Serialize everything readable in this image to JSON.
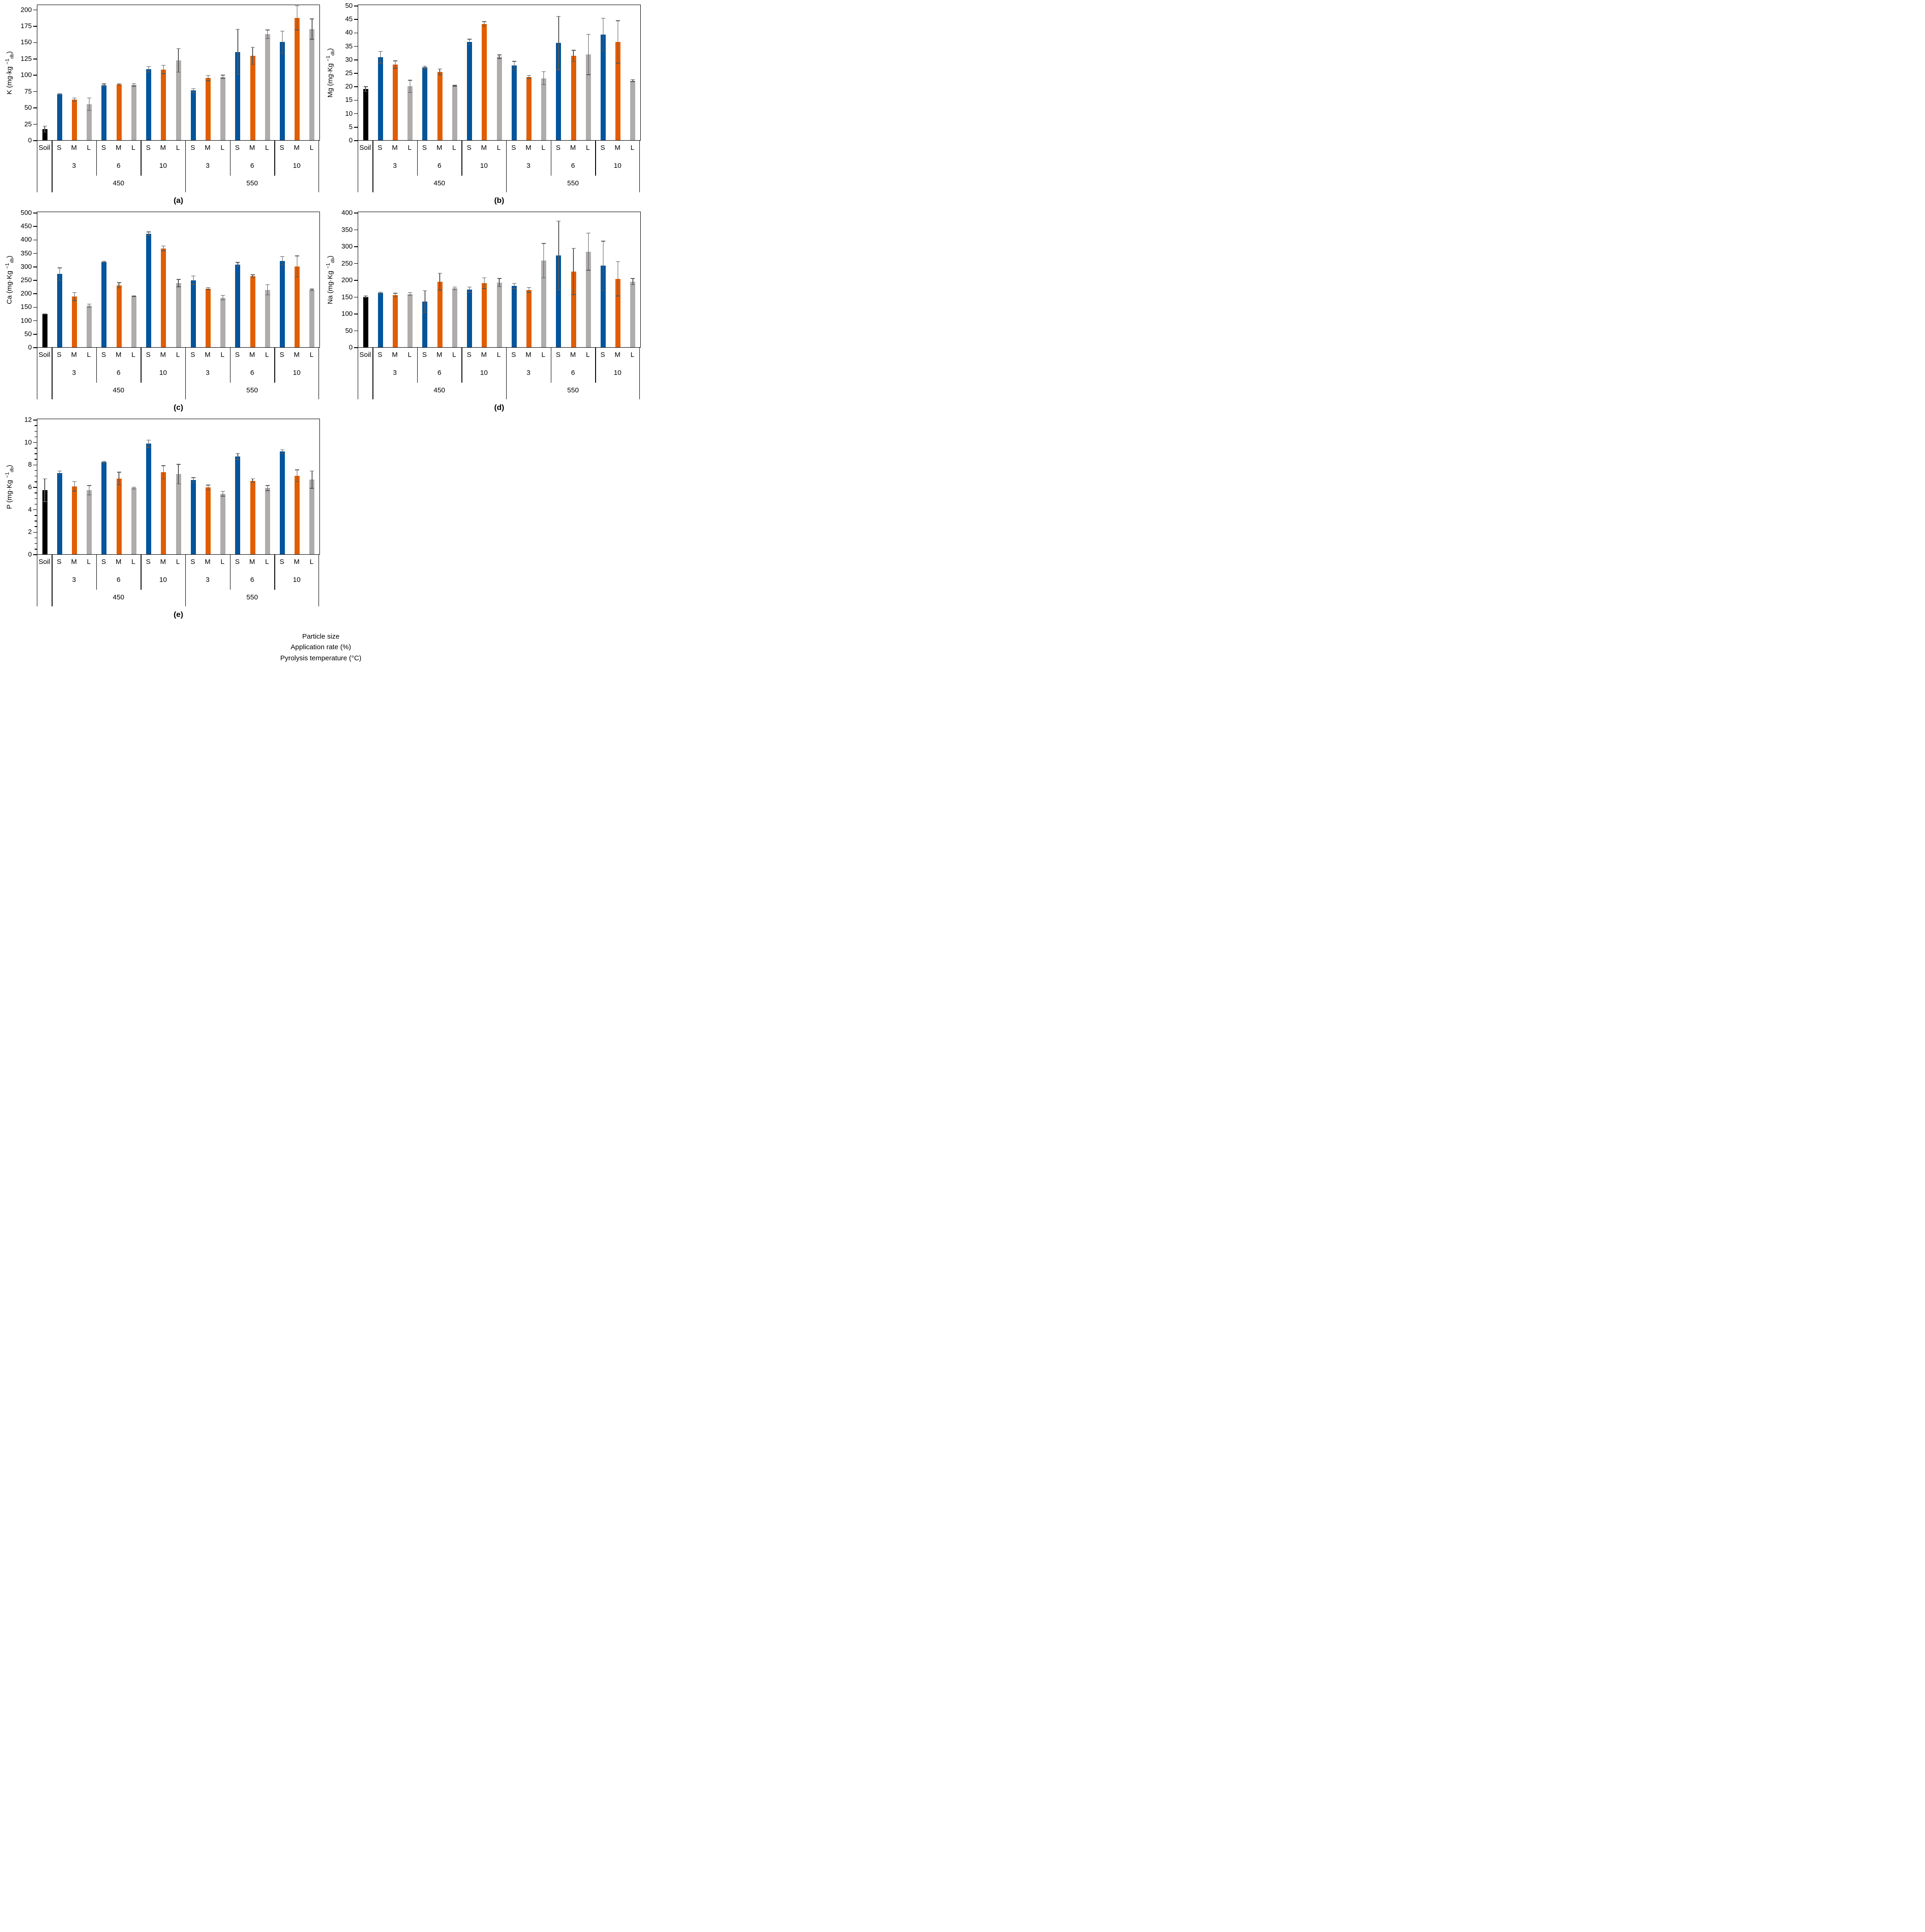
{
  "page": {
    "footer_lines": [
      "Particle size",
      "Application rate (%)",
      "Pyrolysis temperature (°C)"
    ]
  },
  "colors": {
    "soil": "#000000",
    "S": "#02549B",
    "M": "#E05E00",
    "L": "#AFACAC",
    "error_bar": "#595959"
  },
  "axis_labels": {
    "soil": "Soil",
    "particle_sizes": [
      "S",
      "M",
      "L"
    ],
    "application_rates": [
      "3",
      "6",
      "10"
    ],
    "temperatures": [
      "450",
      "550"
    ]
  },
  "chart_data": [
    {
      "type": "bar",
      "panel": "a",
      "caption": "(a)",
      "ylabel": {
        "pre": "K (mg·kg ",
        "sup": "−1",
        "sub": "db",
        "post": ")"
      },
      "ylim": [
        0,
        200
      ],
      "ytop": 206,
      "ytick_step": 25,
      "yminor_step": null,
      "grid": false,
      "legend": "none",
      "soil": {
        "value": 17,
        "err": 5
      },
      "groups": [
        {
          "temp": "450",
          "rate": "3",
          "values": [
            70.5,
            62,
            55
          ],
          "errors": [
            1.5,
            3,
            10
          ]
        },
        {
          "temp": "450",
          "rate": "6",
          "values": [
            84,
            85.5,
            84.5
          ],
          "errors": [
            2.5,
            1.5,
            2.5
          ]
        },
        {
          "temp": "450",
          "rate": "10",
          "values": [
            108.5,
            108,
            122
          ],
          "errors": [
            4.5,
            7,
            18.5
          ]
        },
        {
          "temp": "550",
          "rate": "3",
          "values": [
            76,
            95,
            97
          ],
          "errors": [
            3,
            4.5,
            3
          ]
        },
        {
          "temp": "550",
          "rate": "6",
          "values": [
            135,
            129,
            162
          ],
          "errors": [
            35,
            13.5,
            7
          ]
        },
        {
          "temp": "550",
          "rate": "10",
          "values": [
            150,
            187,
            170
          ],
          "errors": [
            17.5,
            19,
            16
          ]
        }
      ]
    },
    {
      "type": "bar",
      "panel": "b",
      "caption": "(b)",
      "ylabel": {
        "pre": "Mg (mg·Kg ",
        "sup": "−1",
        "sub": "db",
        "post": ")"
      },
      "ylim": [
        0,
        50
      ],
      "ytop": 50,
      "ytick_step": 5,
      "yminor_step": null,
      "grid": false,
      "legend": "none",
      "soil": {
        "value": 19,
        "err": 1
      },
      "groups": [
        {
          "temp": "450",
          "rate": "3",
          "values": [
            30.8,
            28.1,
            20
          ],
          "errors": [
            2.3,
            1.5,
            2.4
          ]
        },
        {
          "temp": "450",
          "rate": "6",
          "values": [
            27,
            25.4,
            20.2
          ],
          "errors": [
            0.6,
            1.2,
            0.3
          ]
        },
        {
          "temp": "450",
          "rate": "10",
          "values": [
            36.5,
            43.2,
            31
          ],
          "errors": [
            1.1,
            0.9,
            0.8
          ]
        },
        {
          "temp": "550",
          "rate": "3",
          "values": [
            27.8,
            23.5,
            23
          ],
          "errors": [
            1.6,
            0.7,
            2.5
          ]
        },
        {
          "temp": "550",
          "rate": "6",
          "values": [
            36.1,
            31.3,
            31.8
          ],
          "errors": [
            10,
            2.2,
            7.6
          ]
        },
        {
          "temp": "550",
          "rate": "10",
          "values": [
            39.2,
            36.5,
            22.1
          ],
          "errors": [
            6.2,
            8,
            0.5
          ]
        }
      ]
    },
    {
      "type": "bar",
      "panel": "c",
      "caption": "(c)",
      "ylabel": {
        "pre": "Ca (mg·Kg ",
        "sup": "−1",
        "sub": "db",
        "post": ")"
      },
      "ylim": [
        0,
        500
      ],
      "ytop": 500,
      "ytick_step": 50,
      "yminor_step": null,
      "grid": false,
      "legend": "none",
      "soil": {
        "value": 123,
        "err": 2
      },
      "groups": [
        {
          "temp": "450",
          "rate": "3",
          "values": [
            272,
            188,
            154
          ],
          "errors": [
            24,
            16,
            7
          ]
        },
        {
          "temp": "450",
          "rate": "6",
          "values": [
            317,
            230,
            189
          ],
          "errors": [
            4,
            11,
            2
          ]
        },
        {
          "temp": "450",
          "rate": "10",
          "values": [
            422,
            367,
            238
          ],
          "errors": [
            7,
            10,
            15
          ]
        },
        {
          "temp": "550",
          "rate": "3",
          "values": [
            249,
            218,
            184
          ],
          "errors": [
            17,
            5,
            10
          ]
        },
        {
          "temp": "550",
          "rate": "6",
          "values": [
            307,
            264,
            213
          ],
          "errors": [
            9,
            6,
            20
          ]
        },
        {
          "temp": "550",
          "rate": "10",
          "values": [
            321,
            300,
            213
          ],
          "errors": [
            17,
            40,
            4
          ]
        }
      ]
    },
    {
      "type": "bar",
      "panel": "d",
      "caption": "(d)",
      "ylabel": {
        "pre": "Na (mg·Kg ",
        "sup": "−1",
        "sub": "db",
        "post": ")"
      },
      "ylim": [
        0,
        400
      ],
      "ytop": 400,
      "ytick_step": 50,
      "yminor_step": null,
      "grid": false,
      "legend": "none",
      "soil": {
        "value": 150,
        "err": 4
      },
      "groups": [
        {
          "temp": "450",
          "rate": "3",
          "values": [
            162,
            155,
            158
          ],
          "errors": [
            3,
            6,
            5
          ]
        },
        {
          "temp": "450",
          "rate": "6",
          "values": [
            136,
            195,
            175
          ],
          "errors": [
            33,
            26,
            5
          ]
        },
        {
          "temp": "450",
          "rate": "10",
          "values": [
            171,
            190,
            192
          ],
          "errors": [
            9,
            17,
            13
          ]
        },
        {
          "temp": "550",
          "rate": "3",
          "values": [
            182,
            170,
            257
          ],
          "errors": [
            9,
            8,
            52
          ]
        },
        {
          "temp": "550",
          "rate": "6",
          "values": [
            272,
            225,
            284
          ],
          "errors": [
            104,
            70,
            56
          ]
        },
        {
          "temp": "550",
          "rate": "10",
          "values": [
            242,
            203,
            195
          ],
          "errors": [
            74,
            52,
            10
          ]
        }
      ]
    },
    {
      "type": "bar",
      "panel": "e",
      "caption": "(e)",
      "ylabel": {
        "pre": "P (mg·Kg ",
        "sup": "−1",
        "sub": "db",
        "post": ")"
      },
      "ylim": [
        0,
        12
      ],
      "ytop": 12,
      "ytick_step": 2,
      "yminor_step": 0.5,
      "grid": false,
      "legend": "none",
      "soil": {
        "value": 5.7,
        "err": 1.05
      },
      "groups": [
        {
          "temp": "450",
          "rate": "3",
          "values": [
            7.25,
            6.05,
            5.7
          ],
          "errors": [
            0.2,
            0.45,
            0.45
          ]
        },
        {
          "temp": "450",
          "rate": "6",
          "values": [
            8.2,
            6.75,
            5.9
          ],
          "errors": [
            0.1,
            0.6,
            0.12
          ]
        },
        {
          "temp": "450",
          "rate": "10",
          "values": [
            9.85,
            7.3,
            7.15
          ],
          "errors": [
            0.35,
            0.62,
            0.9
          ]
        },
        {
          "temp": "550",
          "rate": "3",
          "values": [
            6.6,
            5.95,
            5.4
          ],
          "errors": [
            0.25,
            0.25,
            0.25
          ]
        },
        {
          "temp": "550",
          "rate": "6",
          "values": [
            8.7,
            6.55,
            5.9
          ],
          "errors": [
            0.3,
            0.2,
            0.25
          ]
        },
        {
          "temp": "550",
          "rate": "10",
          "values": [
            9.15,
            7.0,
            6.65
          ],
          "errors": [
            0.2,
            0.55,
            0.8
          ]
        }
      ]
    }
  ]
}
